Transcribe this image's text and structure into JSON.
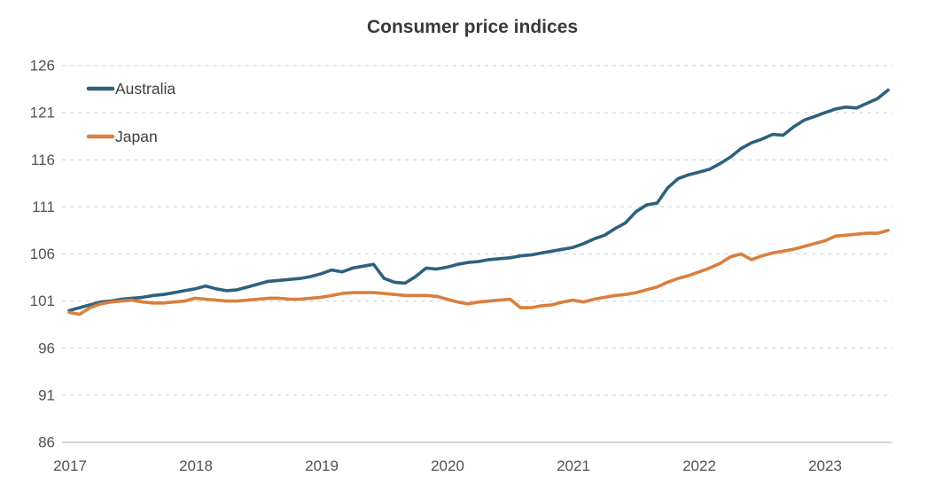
{
  "title": "Consumer price indices",
  "legend": [
    {
      "label": "Australia",
      "color": "#2d617e"
    },
    {
      "label": "Japan",
      "color": "#d97f3d"
    }
  ],
  "colors": {
    "gridline": "#d9d9d9",
    "baseline": "#bfbfbf",
    "axis_text": "#525252",
    "title_text": "#3a3a3a",
    "background": "#ffffff"
  },
  "chart_data": {
    "type": "line",
    "title": "Consumer price indices",
    "xlabel": "",
    "ylabel": "",
    "x_unit": "month",
    "x_start": "2017-01",
    "x_end": "2023-07",
    "x_tick_labels": [
      "2017",
      "2018",
      "2019",
      "2020",
      "2021",
      "2022",
      "2023"
    ],
    "y_ticks": [
      86,
      91,
      96,
      101,
      106,
      111,
      116,
      121,
      126
    ],
    "ylim": [
      86,
      126
    ],
    "grid": "horizontal dashed gridlines, solid baseline at 86",
    "legend_position": "inside top-left",
    "series": [
      {
        "name": "Australia",
        "color": "#2d617e",
        "values": [
          100.0,
          100.3,
          100.6,
          100.9,
          101.0,
          101.2,
          101.3,
          101.4,
          101.6,
          101.7,
          101.9,
          102.1,
          102.3,
          102.6,
          102.3,
          102.1,
          102.2,
          102.5,
          102.8,
          103.1,
          103.2,
          103.3,
          103.4,
          103.6,
          103.9,
          104.3,
          104.1,
          104.5,
          104.7,
          104.9,
          103.4,
          103.0,
          102.9,
          103.6,
          104.5,
          104.4,
          104.6,
          104.9,
          105.1,
          105.2,
          105.4,
          105.5,
          105.6,
          105.8,
          105.9,
          106.1,
          106.3,
          106.5,
          106.7,
          107.1,
          107.6,
          108.0,
          108.7,
          109.3,
          110.5,
          111.2,
          111.4,
          113.0,
          114.0,
          114.4,
          114.7,
          115.0,
          115.6,
          116.3,
          117.2,
          117.8,
          118.2,
          118.7,
          118.6,
          119.5,
          120.2,
          120.6,
          121.0,
          121.4,
          121.6,
          121.5,
          122.0,
          122.5,
          123.4
        ]
      },
      {
        "name": "Japan",
        "color": "#d97f3d",
        "values": [
          99.8,
          99.6,
          100.3,
          100.7,
          100.9,
          101.0,
          101.1,
          100.9,
          100.8,
          100.8,
          100.9,
          101.0,
          101.3,
          101.2,
          101.1,
          101.0,
          101.0,
          101.1,
          101.2,
          101.3,
          101.3,
          101.2,
          101.2,
          101.3,
          101.4,
          101.6,
          101.8,
          101.9,
          101.9,
          101.9,
          101.8,
          101.7,
          101.6,
          101.6,
          101.6,
          101.5,
          101.2,
          100.9,
          100.7,
          100.9,
          101.0,
          101.1,
          101.2,
          100.3,
          100.3,
          100.5,
          100.6,
          100.9,
          101.1,
          100.9,
          101.2,
          101.4,
          101.6,
          101.7,
          101.9,
          102.2,
          102.5,
          103.0,
          103.4,
          103.7,
          104.1,
          104.5,
          105.0,
          105.7,
          106.0,
          105.4,
          105.8,
          106.1,
          106.3,
          106.5,
          106.8,
          107.1,
          107.4,
          107.9,
          108.0,
          108.1,
          108.2,
          108.2,
          108.5
        ]
      }
    ]
  }
}
